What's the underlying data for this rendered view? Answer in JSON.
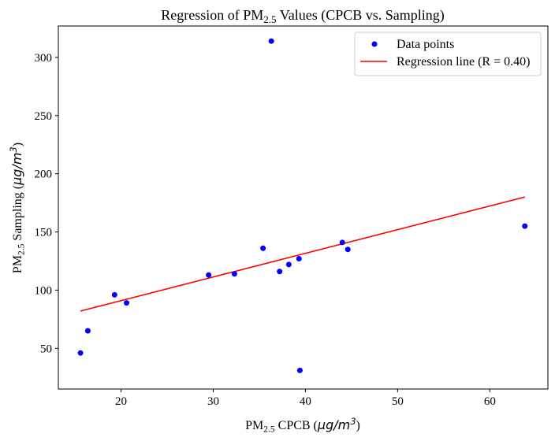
{
  "chart_data": {
    "type": "scatter",
    "title": {
      "prefix": "Regression of PM",
      "sub": "2.5",
      "suffix": " Values (CPCB vs. Sampling)"
    },
    "xlabel": {
      "prefix": "PM",
      "sub": "2.5",
      "mid": " CPCB (",
      "unit_base": "μg/m",
      "unit_exp": "3",
      "suffix": ")"
    },
    "ylabel": {
      "prefix": "PM",
      "sub": "2.5",
      "mid": " Sampling (",
      "unit_base": "μg/m",
      "unit_exp": "3",
      "suffix": ")"
    },
    "xlim": [
      13.2,
      66.3
    ],
    "ylim": [
      15.0,
      327.0
    ],
    "xticks": [
      20,
      30,
      40,
      50,
      60
    ],
    "yticks": [
      50,
      100,
      150,
      200,
      250,
      300
    ],
    "grid": false,
    "legend_position": "top-right",
    "series": [
      {
        "name": "Data points",
        "kind": "scatter",
        "color": "#0000ff",
        "x": [
          15.6,
          16.4,
          19.3,
          20.6,
          29.5,
          32.3,
          35.4,
          36.3,
          37.2,
          38.2,
          39.3,
          39.4,
          44.0,
          44.6,
          63.8
        ],
        "y": [
          46,
          65,
          96,
          89,
          113,
          114,
          136,
          314,
          116,
          122,
          127,
          31,
          141,
          135,
          155
        ]
      },
      {
        "name": "Regression line (R = 0.40)",
        "kind": "line",
        "color": "#ff0000",
        "x": [
          15.6,
          63.8
        ],
        "y": [
          82,
          180
        ]
      }
    ]
  }
}
